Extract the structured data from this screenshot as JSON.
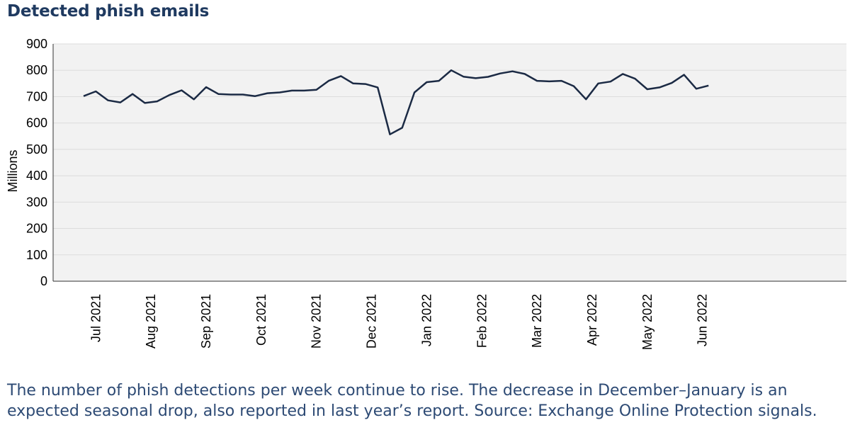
{
  "title": "Detected phish emails",
  "caption": "The number of phish detections per week continue to rise. The decrease in December–January is an expected seasonal drop, also reported in last year’s report. Source: Exchange Online Protection signals.",
  "colors": {
    "title": "#1f3a60",
    "line": "#1b2a44",
    "plot_bg": "#f2f2f2",
    "grid": "#ffffff",
    "caption": "#2d4a74"
  },
  "chart_data": {
    "type": "line",
    "title": "Detected phish emails",
    "xlabel": "",
    "ylabel": "Millions",
    "ylim": [
      0,
      900
    ],
    "yticks": [
      0,
      100,
      200,
      300,
      400,
      500,
      600,
      700,
      800,
      900
    ],
    "grid": true,
    "xtick_labels": [
      "Jul 2021",
      "Aug 2021",
      "Sep 2021",
      "Oct 2021",
      "Nov 2021",
      "Dec 2021",
      "Jan 2022",
      "Feb 2022",
      "Mar 2022",
      "Apr 2022",
      "May 2022",
      "Jun 2022"
    ],
    "xtick_week_index": [
      1,
      5.5,
      10,
      14.5,
      19,
      23.5,
      28,
      32.5,
      37,
      41.5,
      46,
      50.5
    ],
    "series": [
      {
        "values": [
          702,
          720,
          686,
          678,
          710,
          676,
          682,
          706,
          724,
          690,
          736,
          710,
          708,
          708,
          702,
          713,
          716,
          723,
          723,
          726,
          760,
          778,
          750,
          748,
          735,
          557,
          582,
          716,
          755,
          760,
          800,
          776,
          770,
          775,
          788,
          796,
          786,
          760,
          758,
          760,
          740,
          690,
          750,
          757,
          786,
          768,
          728,
          735,
          752,
          783,
          730,
          742
        ]
      }
    ]
  }
}
